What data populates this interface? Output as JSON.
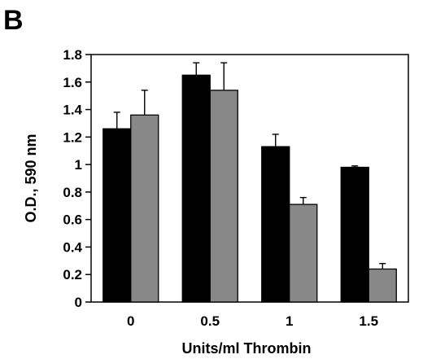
{
  "panel_label": "B",
  "chart_data": {
    "type": "bar",
    "title": "",
    "xlabel": "Units/ml Thrombin",
    "ylabel": "O.D., 590 nm",
    "categories": [
      "0",
      "0.5",
      "1",
      "1.5"
    ],
    "ylim": [
      0,
      1.8
    ],
    "yticks": [
      0,
      0.2,
      0.4,
      0.6,
      0.8,
      1,
      1.2,
      1.4,
      1.6,
      1.8
    ],
    "ytick_labels": [
      "0",
      "0.2",
      "0.4",
      "0.6",
      "0.8",
      "1",
      "1.2",
      "1.4",
      "1.6",
      "1.8"
    ],
    "grid": false,
    "legend": "none",
    "series": [
      {
        "color": "#000000",
        "values": [
          1.26,
          1.65,
          1.13,
          0.98
        ],
        "errors": [
          0.12,
          0.09,
          0.09,
          0.01
        ]
      },
      {
        "color": "#888888",
        "values": [
          1.36,
          1.54,
          0.71,
          0.24
        ],
        "errors": [
          0.18,
          0.2,
          0.05,
          0.04
        ]
      }
    ]
  }
}
